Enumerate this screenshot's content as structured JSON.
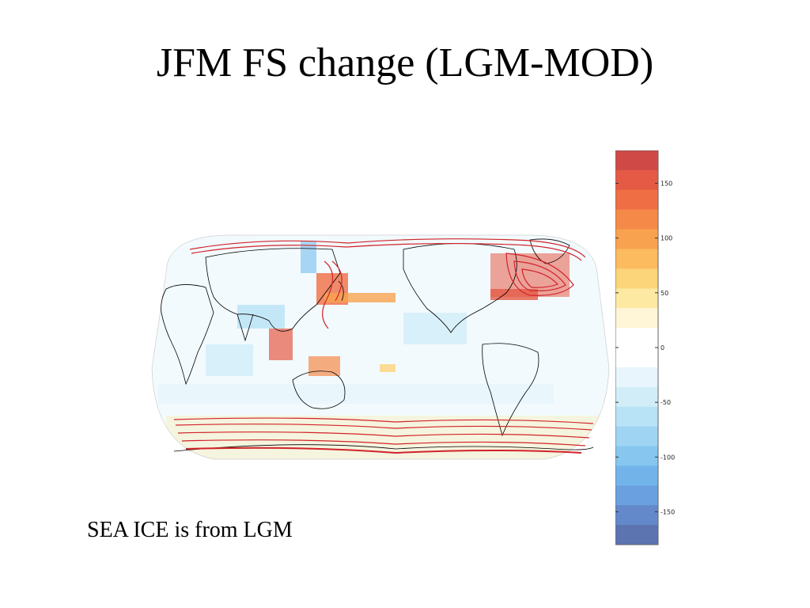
{
  "title": "JFM FS change (LGM-MOD)",
  "caption": "SEA ICE is from LGM",
  "map": {
    "projection": "pacific-centered global map",
    "contour_color": "#d2232a",
    "coastline_color": "#000000"
  },
  "colorbar": {
    "range": [
      -180,
      180
    ],
    "ticks": [
      {
        "value": 150,
        "label": "150"
      },
      {
        "value": 100,
        "label": "100"
      },
      {
        "value": 50,
        "label": "50"
      },
      {
        "value": 0,
        "label": "0"
      },
      {
        "value": -50,
        "label": "-50"
      },
      {
        "value": -100,
        "label": "-100"
      },
      {
        "value": -150,
        "label": "-150"
      }
    ],
    "colors": [
      "#cf4a47",
      "#e55a45",
      "#ef6e44",
      "#f58a48",
      "#f8a24f",
      "#fbbb5e",
      "#fcd479",
      "#fde9a2",
      "#fef6d6",
      "#ffffff",
      "#ffffff",
      "#e8f5fc",
      "#d1edf8",
      "#b8e2f5",
      "#9fd5f3",
      "#87c6ef",
      "#72b4ea",
      "#6aa0df",
      "#6389ca",
      "#5c74b0"
    ]
  }
}
